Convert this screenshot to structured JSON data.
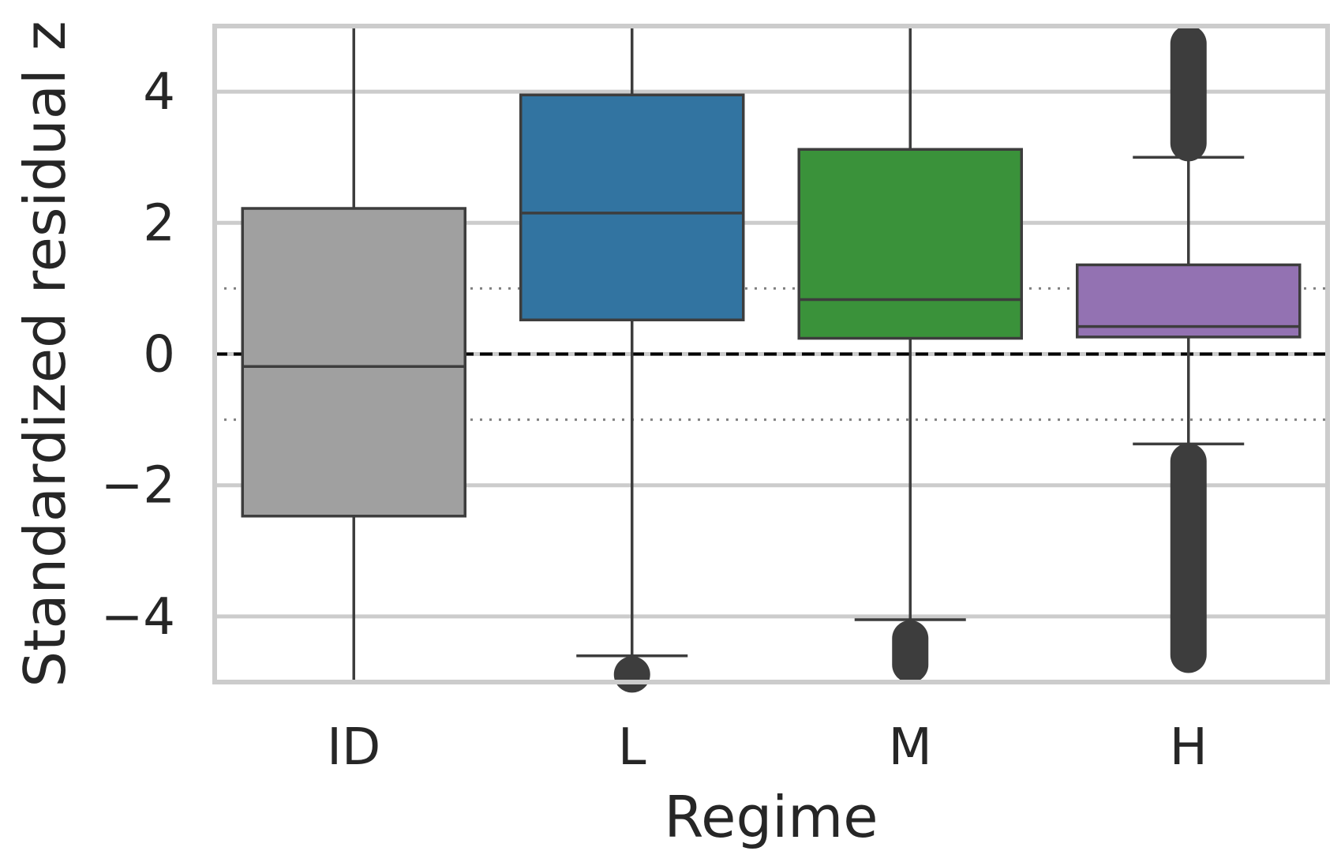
{
  "chart_data": {
    "type": "box",
    "xlabel": "Regime",
    "ylabel": "Standardized residual z",
    "ylim": [
      -5,
      5
    ],
    "yticks": [
      4,
      2,
      0,
      -2,
      -4
    ],
    "ytick_labels": [
      "4",
      "2",
      "0",
      "−2",
      "−4"
    ],
    "grid": true,
    "categories": [
      "ID",
      "L",
      "M",
      "H"
    ],
    "boxes": [
      {
        "name": "ID",
        "color": "#a0a0a0",
        "q1": -2.47,
        "median": -0.19,
        "q3": 2.22,
        "whisker_low": -5.0,
        "whisker_high": 5.0,
        "fliers_low": [],
        "fliers_high": []
      },
      {
        "name": "L",
        "color": "#3274a1",
        "q1": 0.52,
        "median": 2.15,
        "q3": 3.95,
        "whisker_low": -4.6,
        "whisker_high": 5.0,
        "fliers_low": [
          -4.62,
          -5.0
        ],
        "fliers_high": []
      },
      {
        "name": "M",
        "color": "#3a923a",
        "q1": 0.24,
        "median": 0.83,
        "q3": 3.12,
        "whisker_low": -4.05,
        "whisker_high": 5.0,
        "fliers_low": [
          -4.07,
          -5.0
        ],
        "fliers_high": []
      },
      {
        "name": "H",
        "color": "#9372b2",
        "q1": 0.26,
        "median": 0.42,
        "q3": 1.36,
        "whisker_low": -1.37,
        "whisker_high": 3.0,
        "fliers_low": [
          -1.37,
          -4.5,
          -4.6,
          -4.75,
          -4.85
        ],
        "fliers_high": [
          2.95,
          5.0
        ]
      }
    ],
    "reference_lines": [
      {
        "y": 0,
        "style": "dashed",
        "color": "#000000"
      },
      {
        "y": 1,
        "style": "dotted",
        "color": "#808080"
      },
      {
        "y": -1,
        "style": "dotted",
        "color": "#808080"
      }
    ]
  }
}
